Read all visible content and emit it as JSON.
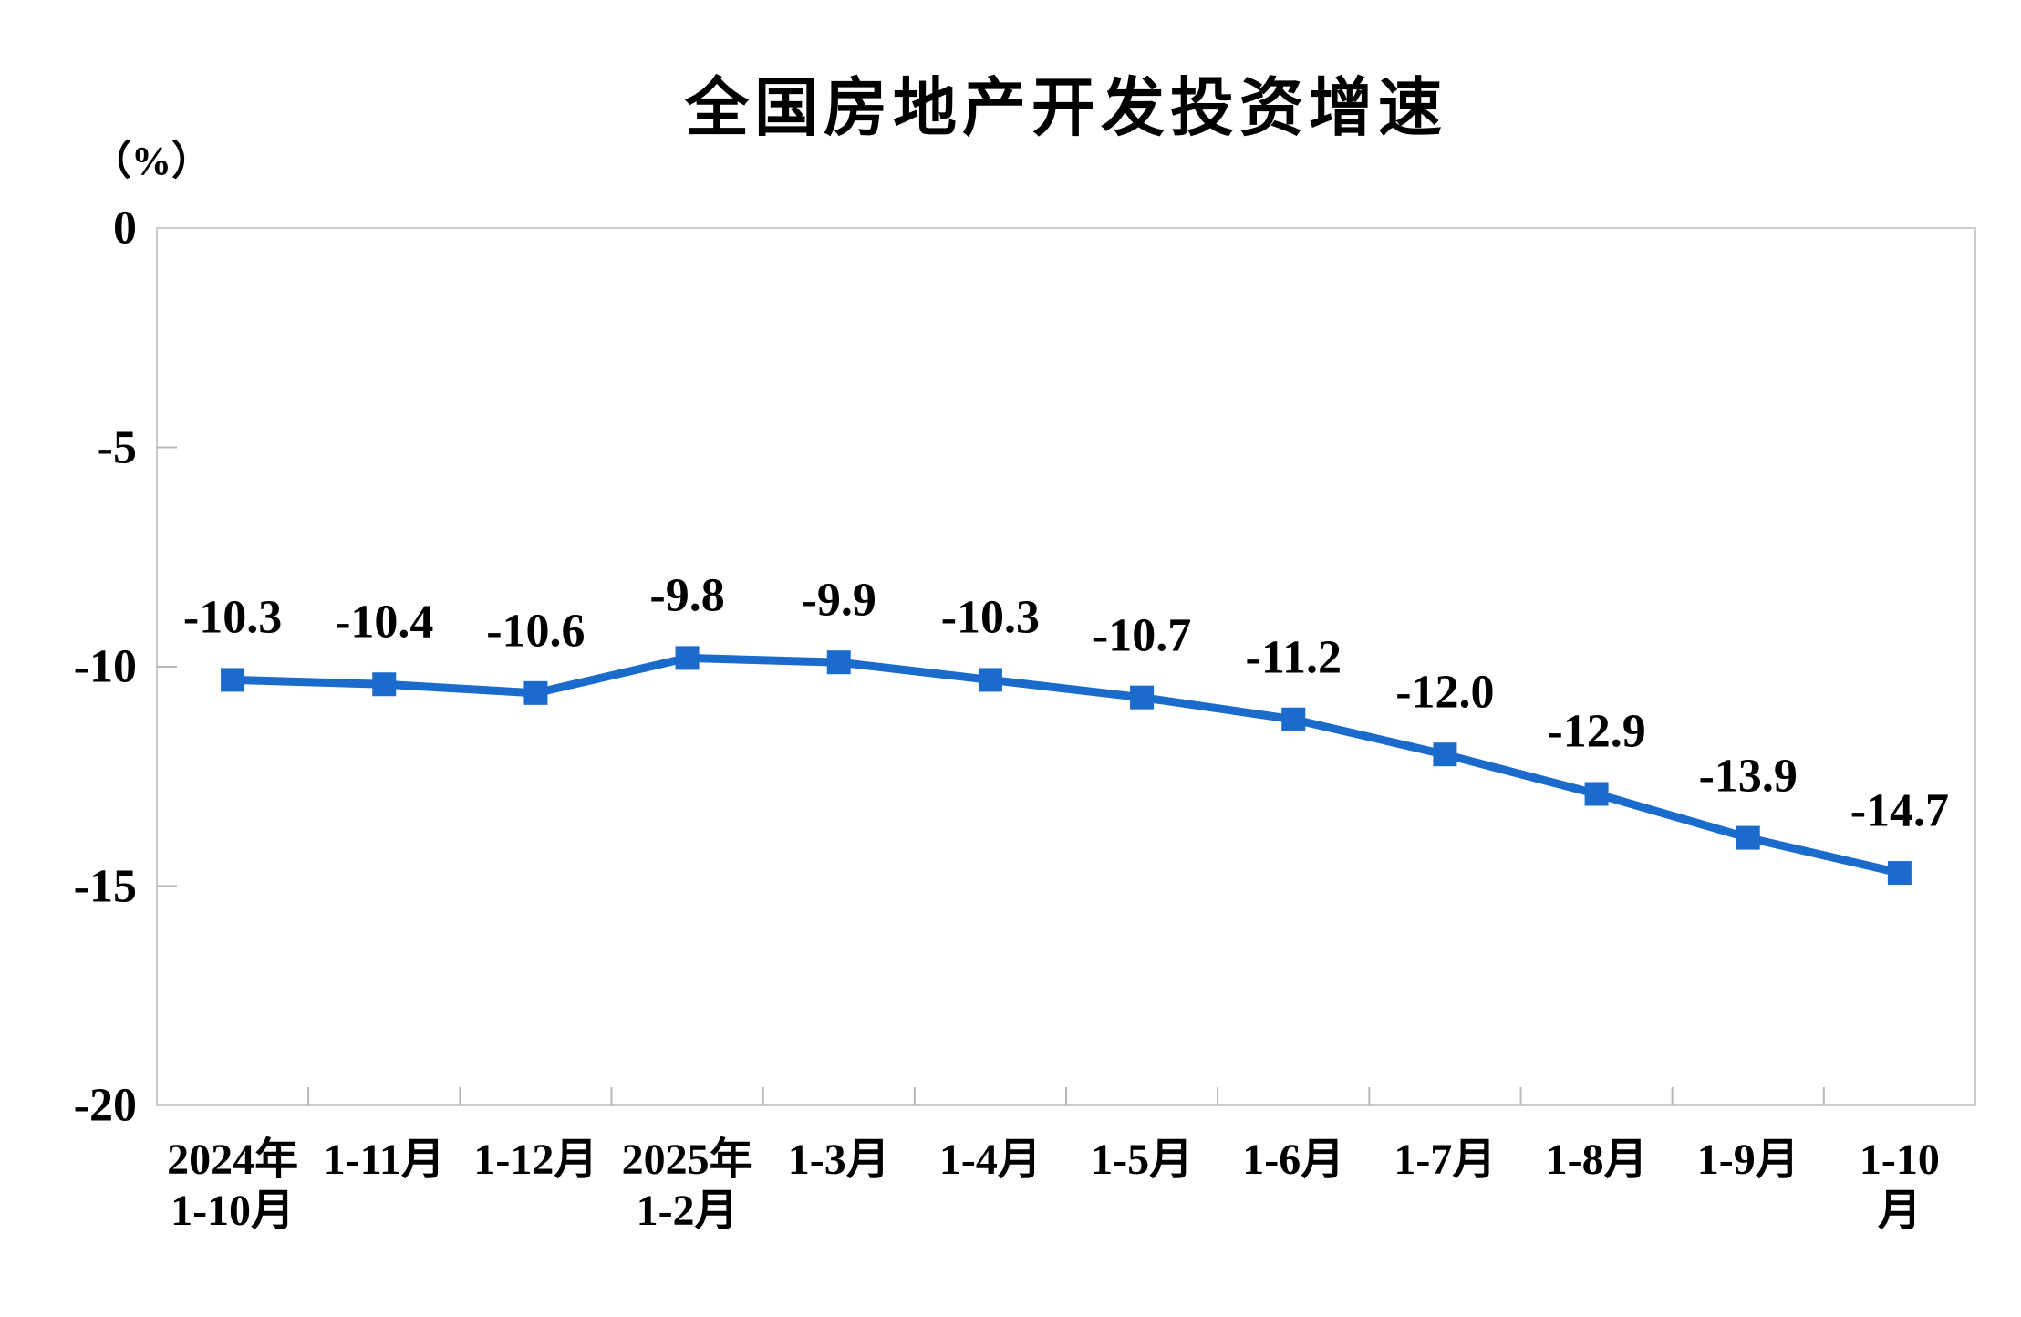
{
  "title": "全国房地产开发投资增速",
  "unit_label": "（%）",
  "colors": {
    "line": "#1A6BCC",
    "plot_border": "#CCCCCC",
    "tick": "#B8B8B8",
    "text": "#000000",
    "background": "#FFFFFF"
  },
  "chart_data": {
    "type": "line",
    "title": "全国房地产开发投资增速",
    "unit_label": "（%）",
    "categories": [
      "2024年\n1-10月",
      "1-11月",
      "1-12月",
      "2025年\n1-2月",
      "1-3月",
      "1-4月",
      "1-5月",
      "1-6月",
      "1-7月",
      "1-8月",
      "1-9月",
      "1-10月"
    ],
    "values": [
      -10.3,
      -10.4,
      -10.6,
      -9.8,
      -9.9,
      -10.3,
      -10.7,
      -11.2,
      -12.0,
      -12.9,
      -13.9,
      -14.7
    ],
    "data_labels": [
      "-10.3",
      "-10.4",
      "-10.6",
      "-9.8",
      "-9.9",
      "-10.3",
      "-10.7",
      "-11.2",
      "-12.0",
      "-12.9",
      "-13.9",
      "-14.7"
    ],
    "y_ticks": [
      0,
      -5,
      -10,
      -15,
      -20
    ],
    "y_tick_labels": [
      "0",
      "-5",
      "-10",
      "-15",
      "-20"
    ],
    "ylim": [
      -20,
      0
    ],
    "xlabel": "",
    "ylabel": "（%）",
    "grid": false,
    "legend": false,
    "marker": "square",
    "line_color": "#1A6BCC"
  }
}
